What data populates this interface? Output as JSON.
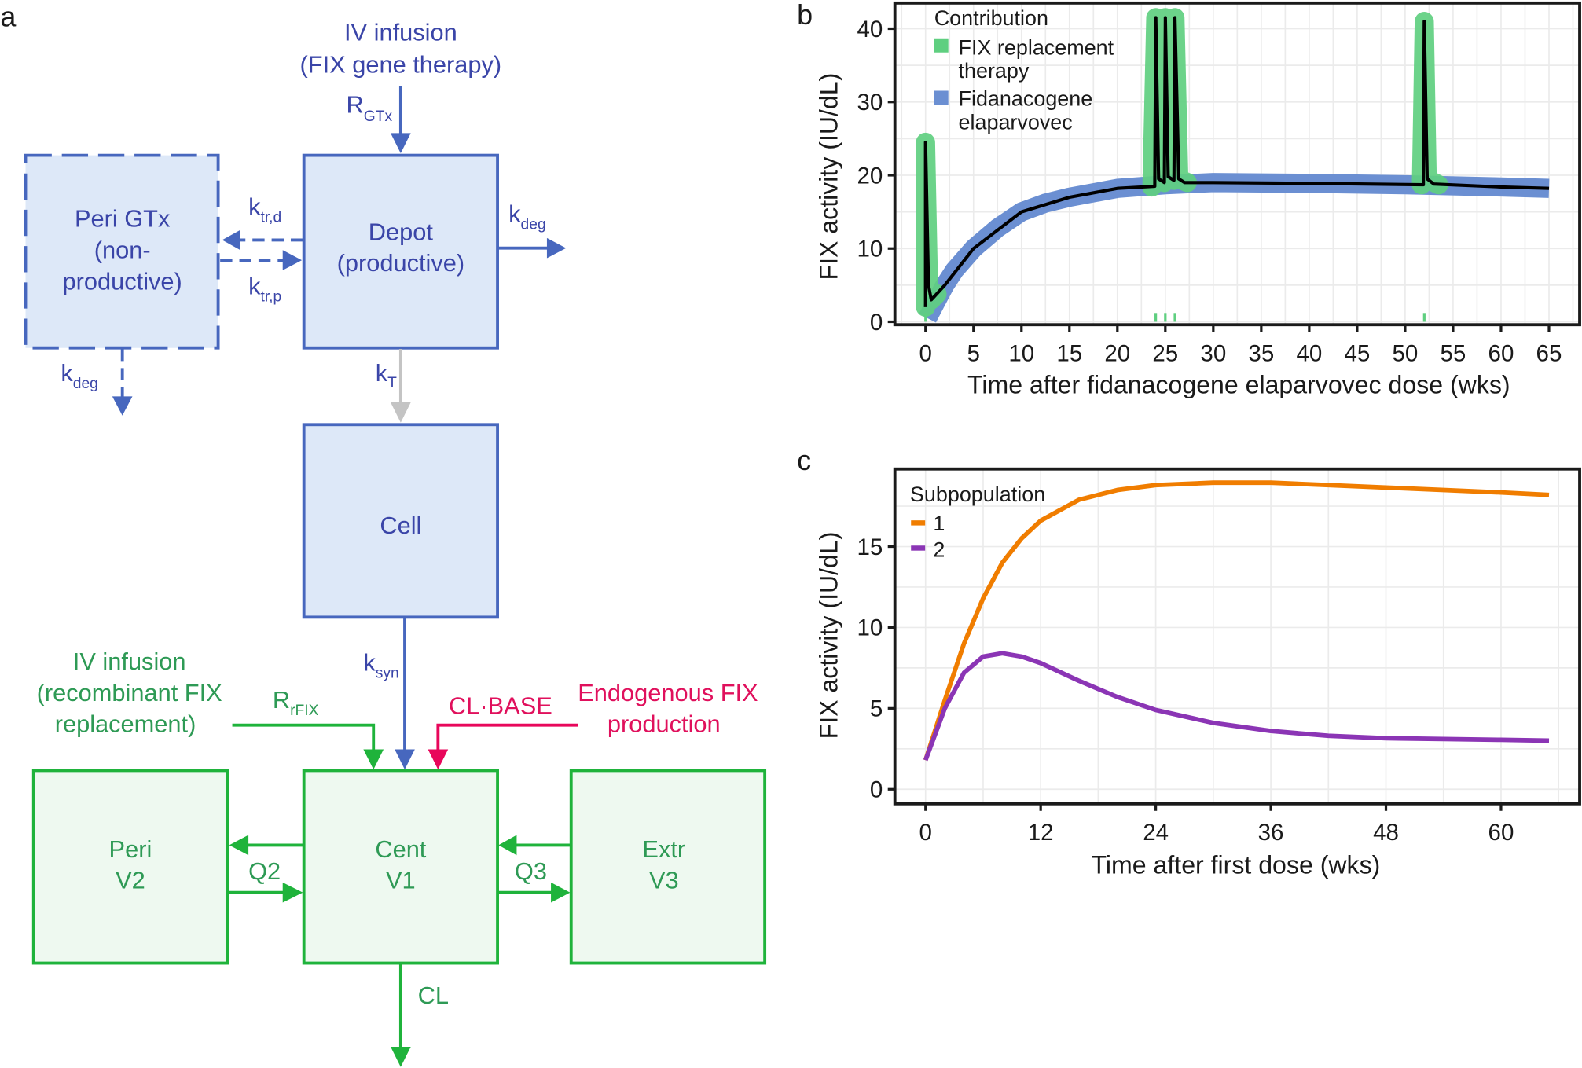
{
  "panel_labels": {
    "a": "a",
    "b": "b",
    "c": "c"
  },
  "colors": {
    "gene_blue": "#4767be",
    "box_blue_fill": "#dde8f8",
    "gray_arrow": "#c4c4c4",
    "green": "#1fb33b",
    "box_green_fill": "#eef9f0",
    "red": "#e8075b",
    "replacement_green": "#5fcf80",
    "fidanacogene_blue": "#6b8fd2",
    "subpop1": "#f07d00",
    "subpop2": "#8b35b5"
  },
  "diagram": {
    "gene_infusion": {
      "lines": [
        "IV infusion",
        "(FIX gene therapy)"
      ],
      "rate": {
        "main": "R",
        "sub": "GTx"
      }
    },
    "peri_gtx": {
      "lines": [
        "Peri GTx",
        "(non-",
        "productive)"
      ]
    },
    "depot": {
      "lines": [
        "Depot",
        "(productive)"
      ]
    },
    "cell": {
      "label": "Cell"
    },
    "k_tr_d": {
      "main": "k",
      "sub": "tr,d"
    },
    "k_tr_p": {
      "main": "k",
      "sub": "tr,p"
    },
    "k_deg_depot": {
      "main": "k",
      "sub": "deg"
    },
    "k_deg_peri": {
      "main": "k",
      "sub": "deg"
    },
    "k_t": {
      "main": "k",
      "sub": "T"
    },
    "k_syn": {
      "main": "k",
      "sub": "syn"
    },
    "fix_infusion": {
      "lines": [
        "IV infusion",
        "(recombinant FIX",
        "replacement)"
      ],
      "rate": {
        "main": "R",
        "sub": "rFIX"
      }
    },
    "endogenous": {
      "lines": [
        "Endogenous FIX",
        "production"
      ],
      "rate": "CL·BASE"
    },
    "peri": {
      "lines": [
        "Peri",
        "V2"
      ]
    },
    "cent": {
      "lines": [
        "Cent",
        "V1"
      ]
    },
    "extr": {
      "lines": [
        "Extr",
        "V3"
      ]
    },
    "q2": "Q2",
    "q3": "Q3",
    "cl": "CL"
  },
  "chart_data": [
    {
      "type": "line",
      "panel": "b",
      "xlabel": "Time after fidanacogene elaparvovec dose (wks)",
      "ylabel": "FIX activity (IU/dL)",
      "xlim": [
        -3.2,
        68.2
      ],
      "ylim": [
        -0.4,
        43.5
      ],
      "xticks": [
        0,
        5,
        10,
        15,
        20,
        25,
        30,
        35,
        40,
        45,
        50,
        55,
        60,
        65
      ],
      "yticks": [
        0,
        10,
        20,
        30,
        40
      ],
      "grid": true,
      "legend": {
        "title": "Contribution",
        "position": "top-left",
        "entries": [
          {
            "lines": [
              "FIX replacement",
              "therapy"
            ],
            "color": "#5fcf80"
          },
          {
            "lines": [
              "Fidanacogene",
              "elaparvovec"
            ],
            "color": "#6b8fd2"
          }
        ]
      },
      "fidanacogene_elaparvovec": [
        [
          0.2,
          0.5
        ],
        [
          1,
          2.5
        ],
        [
          2,
          5
        ],
        [
          3,
          7
        ],
        [
          5,
          10
        ],
        [
          7.5,
          12.8
        ],
        [
          10,
          15
        ],
        [
          12.5,
          16.2
        ],
        [
          15,
          17
        ],
        [
          20,
          18.2
        ],
        [
          25,
          18.7
        ],
        [
          30,
          19
        ],
        [
          40,
          18.9
        ],
        [
          50,
          18.7
        ],
        [
          60,
          18.4
        ],
        [
          65,
          18.2
        ]
      ],
      "fix_replacement_therapy": [
        [
          [
            0,
            2
          ],
          [
            0,
            24.5
          ],
          [
            0.3,
            5
          ],
          [
            0.6,
            3
          ],
          [
            1.2,
            3.8
          ]
        ],
        [
          [
            23.6,
            18.4
          ],
          [
            24,
            41.5
          ],
          [
            24.3,
            19.5
          ],
          [
            24.9,
            19
          ],
          [
            25,
            41.5
          ],
          [
            25.3,
            19.8
          ],
          [
            25.9,
            19.3
          ],
          [
            26,
            41.5
          ],
          [
            26.4,
            19.5
          ],
          [
            27.3,
            19
          ]
        ],
        [
          [
            51.7,
            18.7
          ],
          [
            52,
            41
          ],
          [
            52.3,
            19.5
          ],
          [
            53.5,
            18.7
          ]
        ]
      ],
      "total": [
        [
          0,
          2
        ],
        [
          0,
          24.5
        ],
        [
          0.3,
          5
        ],
        [
          0.6,
          3
        ],
        [
          2,
          5
        ],
        [
          5,
          10
        ],
        [
          10,
          15
        ],
        [
          15,
          17
        ],
        [
          20,
          18.2
        ],
        [
          23.9,
          18.5
        ],
        [
          24,
          41.5
        ],
        [
          24.3,
          19.5
        ],
        [
          24.9,
          19
        ],
        [
          25,
          41.5
        ],
        [
          25.3,
          19.8
        ],
        [
          25.9,
          19.3
        ],
        [
          26,
          41.5
        ],
        [
          26.4,
          19.5
        ],
        [
          27,
          19
        ],
        [
          30,
          19
        ],
        [
          40,
          18.9
        ],
        [
          51.9,
          18.7
        ],
        [
          52,
          41
        ],
        [
          52.3,
          19.5
        ],
        [
          53,
          18.8
        ],
        [
          60,
          18.4
        ],
        [
          65,
          18.2
        ]
      ],
      "replacement_doses": [
        0,
        24,
        25,
        26,
        52
      ]
    },
    {
      "type": "line",
      "panel": "c",
      "xlabel": "Time after first dose (wks)",
      "ylabel": "FIX activity (IU/dL)",
      "xlim": [
        -3.2,
        68.2
      ],
      "ylim": [
        -0.9,
        19.8
      ],
      "xticks": [
        0,
        12,
        24,
        36,
        48,
        60
      ],
      "yticks": [
        0,
        5,
        10,
        15
      ],
      "grid": true,
      "legend": {
        "title": "Subpopulation",
        "position": "top-left"
      },
      "series": [
        {
          "name": "1",
          "color": "#f07d00",
          "points": [
            [
              0,
              1.8
            ],
            [
              2,
              5.5
            ],
            [
              4,
              9
            ],
            [
              6,
              11.8
            ],
            [
              8,
              14
            ],
            [
              10,
              15.5
            ],
            [
              12,
              16.6
            ],
            [
              16,
              17.9
            ],
            [
              20,
              18.5
            ],
            [
              24,
              18.8
            ],
            [
              30,
              18.95
            ],
            [
              36,
              18.95
            ],
            [
              42,
              18.8
            ],
            [
              48,
              18.65
            ],
            [
              54,
              18.5
            ],
            [
              60,
              18.35
            ],
            [
              65,
              18.2
            ]
          ]
        },
        {
          "name": "2",
          "color": "#8b35b5",
          "points": [
            [
              0,
              1.8
            ],
            [
              2,
              5
            ],
            [
              4,
              7.2
            ],
            [
              6,
              8.2
            ],
            [
              8,
              8.4
            ],
            [
              10,
              8.2
            ],
            [
              12,
              7.8
            ],
            [
              16,
              6.7
            ],
            [
              20,
              5.7
            ],
            [
              24,
              4.9
            ],
            [
              30,
              4.1
            ],
            [
              36,
              3.6
            ],
            [
              42,
              3.3
            ],
            [
              48,
              3.15
            ],
            [
              54,
              3.1
            ],
            [
              60,
              3.05
            ],
            [
              65,
              3.0
            ]
          ]
        }
      ]
    }
  ]
}
